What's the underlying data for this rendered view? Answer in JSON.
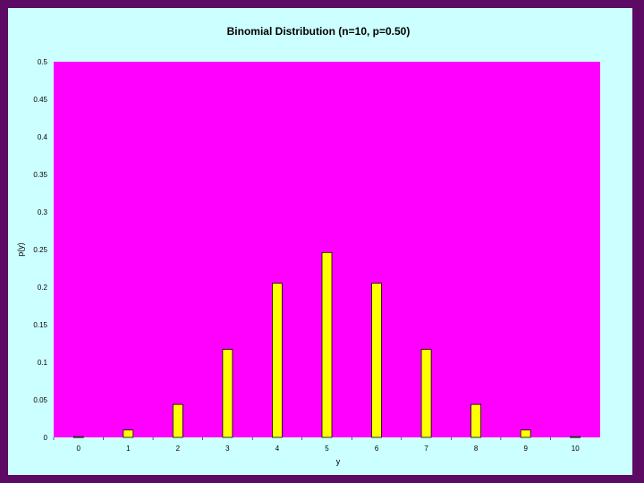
{
  "colors": {
    "frame": "#5c0a64",
    "background": "#ccffff",
    "plot_area": "#ff00ff",
    "bar_fill": "#ffff00",
    "bar_stroke": "#000000"
  },
  "chart_data": {
    "type": "bar",
    "title": "Binomial Distribution (n=10, p=0.50)",
    "xlabel": "y",
    "ylabel": "p(y)",
    "categories": [
      "0",
      "1",
      "2",
      "3",
      "4",
      "5",
      "6",
      "7",
      "8",
      "9",
      "10"
    ],
    "values": [
      0.001,
      0.0098,
      0.0439,
      0.1172,
      0.2051,
      0.2461,
      0.2051,
      0.1172,
      0.0439,
      0.0098,
      0.001
    ],
    "ylim": [
      0,
      0.5
    ],
    "yticks": [
      "0",
      "0.05",
      "0.1",
      "0.15",
      "0.2",
      "0.25",
      "0.3",
      "0.35",
      "0.4",
      "0.45",
      "0.5"
    ],
    "grid": false,
    "legend": "none"
  }
}
